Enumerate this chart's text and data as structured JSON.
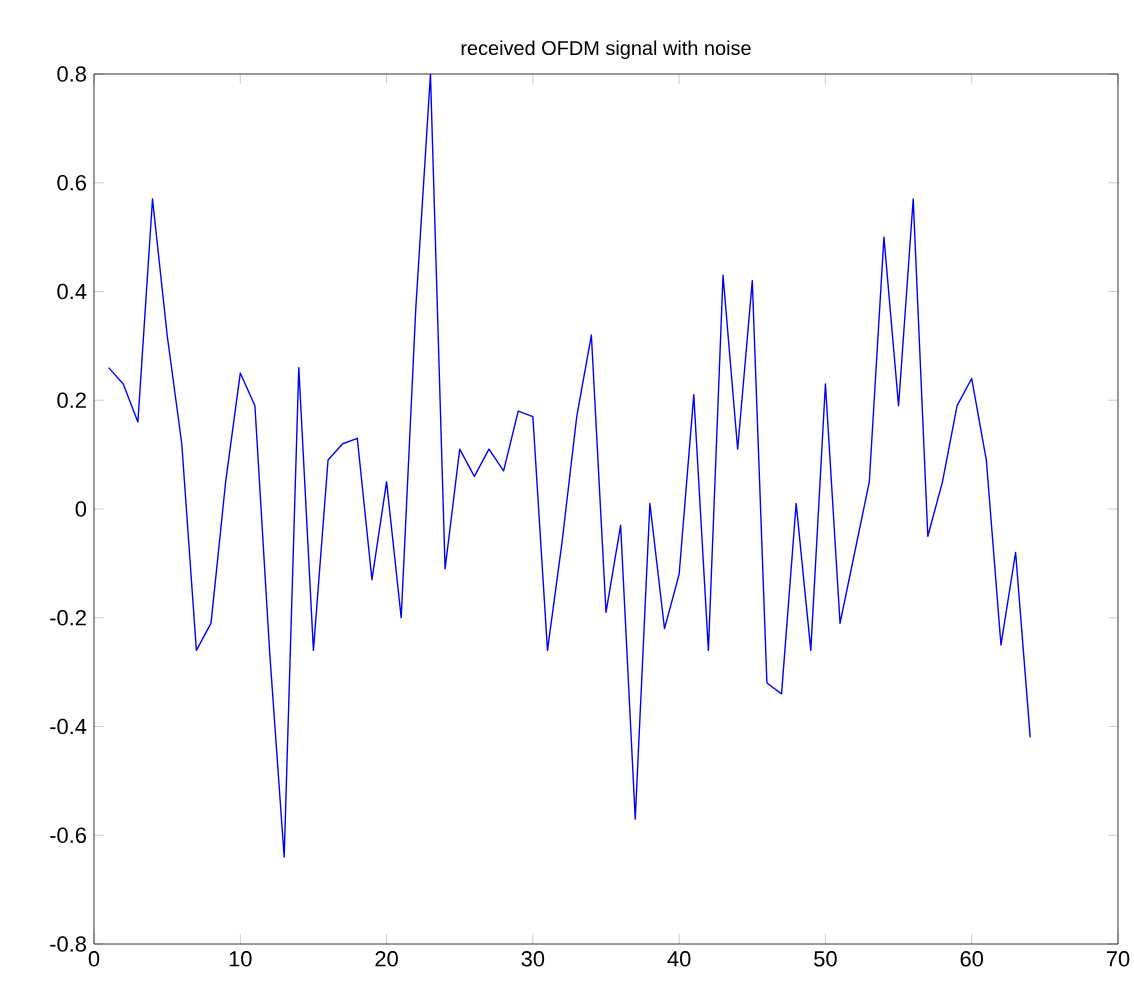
{
  "chart_data": {
    "type": "line",
    "title": "received OFDM signal with noise",
    "x": [
      1,
      2,
      3,
      4,
      5,
      6,
      7,
      8,
      9,
      10,
      11,
      12,
      13,
      14,
      15,
      16,
      17,
      18,
      19,
      20,
      21,
      22,
      23,
      24,
      25,
      26,
      27,
      28,
      29,
      30,
      31,
      32,
      33,
      34,
      35,
      36,
      37,
      38,
      39,
      40,
      41,
      42,
      43,
      44,
      45,
      46,
      47,
      48,
      49,
      50,
      51,
      52,
      53,
      54,
      55,
      56,
      57,
      58,
      59,
      60,
      61,
      62,
      63,
      64
    ],
    "values": [
      0.26,
      0.23,
      0.16,
      0.57,
      0.32,
      0.12,
      -0.26,
      -0.21,
      0.05,
      0.25,
      0.19,
      -0.26,
      -0.64,
      0.26,
      -0.26,
      0.09,
      0.12,
      0.13,
      -0.13,
      0.05,
      -0.2,
      0.37,
      0.8,
      -0.11,
      0.11,
      0.06,
      0.11,
      0.07,
      0.18,
      0.17,
      -0.26,
      -0.06,
      0.17,
      0.32,
      -0.19,
      -0.03,
      -0.57,
      0.01,
      -0.22,
      -0.12,
      0.21,
      -0.26,
      0.43,
      0.11,
      0.42,
      -0.32,
      -0.34,
      0.01,
      -0.26,
      0.23,
      -0.21,
      -0.08,
      0.05,
      0.5,
      0.19,
      0.57,
      -0.05,
      0.05,
      0.19,
      0.24,
      0.09,
      -0.25,
      -0.08,
      -0.42
    ],
    "color": "#0000ff",
    "xlim": [
      0,
      70
    ],
    "xticks": [
      0,
      10,
      20,
      30,
      40,
      50,
      60,
      70
    ],
    "ylim": [
      -0.8,
      0.8
    ],
    "yticks": [
      -0.8,
      -0.6,
      -0.4,
      -0.2,
      0,
      0.2,
      0.4,
      0.6,
      0.8
    ]
  }
}
